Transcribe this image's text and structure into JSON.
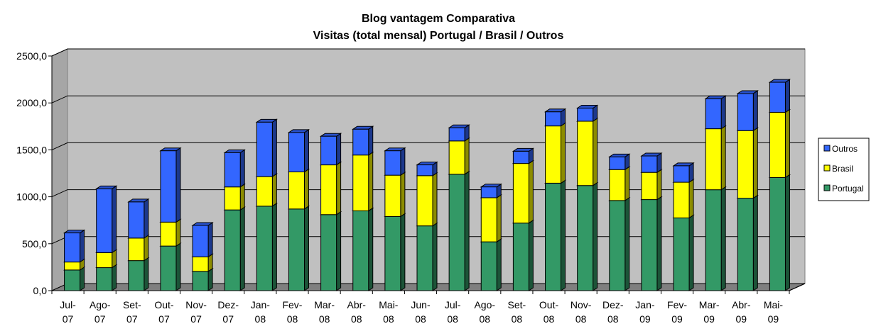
{
  "chart_data": {
    "type": "bar",
    "stacked": true,
    "title": "Blog vantagem Comparativa",
    "subtitle": "Visitas (total mensal) Portugal / Brasil / Outros",
    "xlabel": "",
    "ylabel": "",
    "ylim": [
      0,
      2500
    ],
    "yticks": [
      "0,0",
      "500,0",
      "1000,0",
      "1500,0",
      "2000,0",
      "2500,0"
    ],
    "categories": [
      [
        "Jul-",
        "07"
      ],
      [
        "Ago-",
        "07"
      ],
      [
        "Set-",
        "07"
      ],
      [
        "Out-",
        "07"
      ],
      [
        "Nov-",
        "07"
      ],
      [
        "Dez-",
        "07"
      ],
      [
        "Jan-",
        "08"
      ],
      [
        "Fev-",
        "08"
      ],
      [
        "Mar-",
        "08"
      ],
      [
        "Abr-",
        "08"
      ],
      [
        "Mai-",
        "08"
      ],
      [
        "Jun-",
        "08"
      ],
      [
        "Jul-",
        "08"
      ],
      [
        "Ago-",
        "08"
      ],
      [
        "Set-",
        "08"
      ],
      [
        "Out-",
        "08"
      ],
      [
        "Nov-",
        "08"
      ],
      [
        "Dez-",
        "08"
      ],
      [
        "Jan-",
        "09"
      ],
      [
        "Fev-",
        "09"
      ],
      [
        "Mar-",
        "09"
      ],
      [
        "Abr-",
        "09"
      ],
      [
        "Mai-",
        "09"
      ]
    ],
    "series": [
      {
        "name": "Portugal",
        "color": "#339966",
        "values": [
          220,
          245,
          320,
          475,
          205,
          860,
          900,
          870,
          810,
          850,
          790,
          690,
          1240,
          520,
          720,
          1145,
          1120,
          960,
          970,
          775,
          1075,
          985,
          1205
        ]
      },
      {
        "name": "Brasil",
        "color": "#FFFF00",
        "values": [
          85,
          160,
          240,
          255,
          155,
          245,
          315,
          395,
          530,
          595,
          440,
          535,
          355,
          470,
          635,
          610,
          685,
          330,
          290,
          380,
          650,
          720,
          695
        ]
      },
      {
        "name": "Outros",
        "color": "#3366FF",
        "values": [
          310,
          680,
          385,
          760,
          335,
          365,
          580,
          420,
          305,
          275,
          260,
          115,
          140,
          115,
          130,
          150,
          140,
          135,
          175,
          175,
          320,
          395,
          320
        ]
      }
    ],
    "legend_position": "right",
    "legend_order": [
      "Outros",
      "Brasil",
      "Portugal"
    ],
    "grid": true
  }
}
